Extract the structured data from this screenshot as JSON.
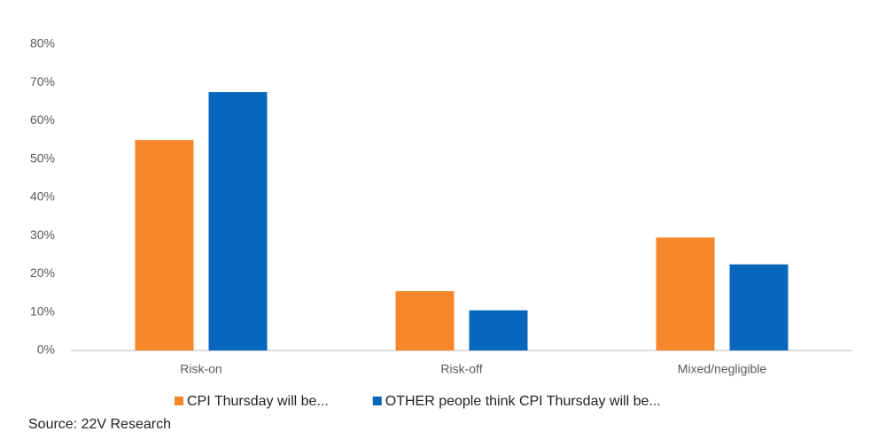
{
  "chart_data": {
    "type": "bar",
    "categories": [
      "Risk-on",
      "Risk-off",
      "Mixed/negligible"
    ],
    "series": [
      {
        "name": "CPI Thursday will be...",
        "color": "#f5862a",
        "values": [
          55,
          15.5,
          29.5
        ]
      },
      {
        "name": "OTHER people think CPI Thursday will be...",
        "color": "#0867bd",
        "values": [
          67.5,
          10.5,
          22.5
        ]
      }
    ],
    "ylim": [
      0,
      80
    ],
    "yticks": [
      {
        "value": 0,
        "label": "0%"
      },
      {
        "value": 10,
        "label": "10%"
      },
      {
        "value": 20,
        "label": "20%"
      },
      {
        "value": 30,
        "label": "30%"
      },
      {
        "value": 40,
        "label": "40%"
      },
      {
        "value": 50,
        "label": "50%"
      },
      {
        "value": 60,
        "label": "60%"
      },
      {
        "value": 70,
        "label": "70%"
      },
      {
        "value": 80,
        "label": "80%"
      }
    ],
    "grid": false,
    "legend": "bottom",
    "source": "Source: 22V Research"
  }
}
